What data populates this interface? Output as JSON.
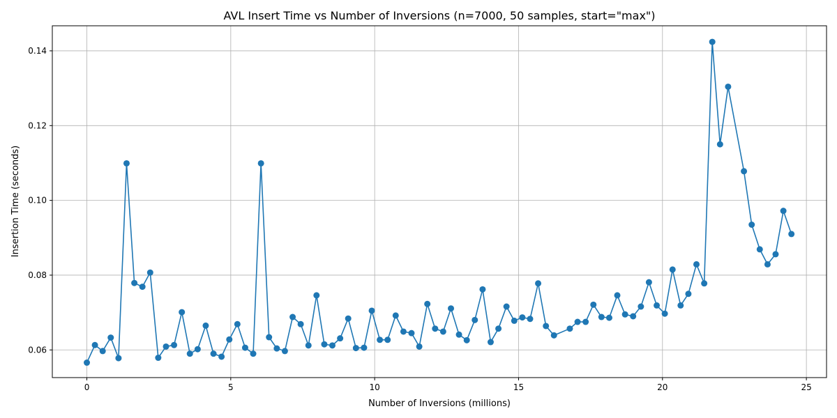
{
  "chart_data": {
    "type": "line",
    "title": "AVL Insert Time vs Number of Inversions (n=7000, 50 samples, start=\"max\")",
    "xlabel": "Number of Inversions (millions)",
    "ylabel": "Insertion Time (seconds)",
    "xlim": [
      -1.2,
      25.7
    ],
    "ylim": [
      0.0526,
      0.1467
    ],
    "grid": true,
    "colors": {
      "series": "#1f77b4"
    },
    "x_ticks": [
      {
        "value": 0,
        "label": "0"
      },
      {
        "value": 5,
        "label": "5"
      },
      {
        "value": 10,
        "label": "10"
      },
      {
        "value": 15,
        "label": "15"
      },
      {
        "value": 20,
        "label": "20"
      },
      {
        "value": 25,
        "label": "25"
      }
    ],
    "y_ticks": [
      {
        "value": 0.06,
        "label": "0.06"
      },
      {
        "value": 0.08,
        "label": "0.08"
      },
      {
        "value": 0.1,
        "label": "0.10"
      },
      {
        "value": 0.12,
        "label": "0.12"
      },
      {
        "value": 0.14,
        "label": "0.14"
      }
    ],
    "series": [
      {
        "marker": "circle",
        "x": [
          0.0,
          0.28,
          0.55,
          0.83,
          1.1,
          1.38,
          1.65,
          1.93,
          2.2,
          2.48,
          2.75,
          3.03,
          3.3,
          3.58,
          3.85,
          4.13,
          4.4,
          4.68,
          4.95,
          5.23,
          5.5,
          5.78,
          6.05,
          6.33,
          6.6,
          6.88,
          7.15,
          7.43,
          7.7,
          7.98,
          8.25,
          8.53,
          8.8,
          9.08,
          9.35,
          9.63,
          9.9,
          10.18,
          10.45,
          10.73,
          11.0,
          11.28,
          11.55,
          11.83,
          12.1,
          12.38,
          12.65,
          12.93,
          13.2,
          13.48,
          13.75,
          14.03,
          14.3,
          14.58,
          14.85,
          15.13,
          15.4,
          15.68,
          15.95,
          16.23,
          16.78,
          17.05,
          17.33,
          17.6,
          17.88,
          18.15,
          18.43,
          18.7,
          18.98,
          19.25,
          19.53,
          19.8,
          20.08,
          20.35,
          20.63,
          20.9,
          21.18,
          21.45,
          21.73,
          22.0,
          22.28,
          22.83,
          23.1,
          23.38,
          23.65,
          23.93,
          24.2,
          24.48
        ],
        "y": [
          0.0566,
          0.0613,
          0.0597,
          0.0633,
          0.0578,
          0.1099,
          0.0779,
          0.0769,
          0.0807,
          0.0579,
          0.0609,
          0.0613,
          0.0701,
          0.059,
          0.0602,
          0.0665,
          0.059,
          0.0582,
          0.0628,
          0.0669,
          0.0606,
          0.059,
          0.1099,
          0.0634,
          0.0604,
          0.0597,
          0.0688,
          0.0669,
          0.0612,
          0.0746,
          0.0615,
          0.0612,
          0.0631,
          0.0684,
          0.0605,
          0.0606,
          0.0705,
          0.0627,
          0.0627,
          0.0692,
          0.0649,
          0.0645,
          0.0609,
          0.0723,
          0.0657,
          0.0649,
          0.0711,
          0.0641,
          0.0626,
          0.068,
          0.0762,
          0.0621,
          0.0657,
          0.0716,
          0.0678,
          0.0687,
          0.0683,
          0.0778,
          0.0664,
          0.0639,
          0.0657,
          0.0675,
          0.0675,
          0.0721,
          0.0688,
          0.0686,
          0.0746,
          0.0695,
          0.069,
          0.0716,
          0.0781,
          0.0719,
          0.0697,
          0.0815,
          0.0719,
          0.075,
          0.0829,
          0.0778,
          0.1424,
          0.115,
          0.1304,
          0.1078,
          0.0935,
          0.0869,
          0.0829,
          0.0856,
          0.0972,
          0.091
        ]
      }
    ]
  }
}
